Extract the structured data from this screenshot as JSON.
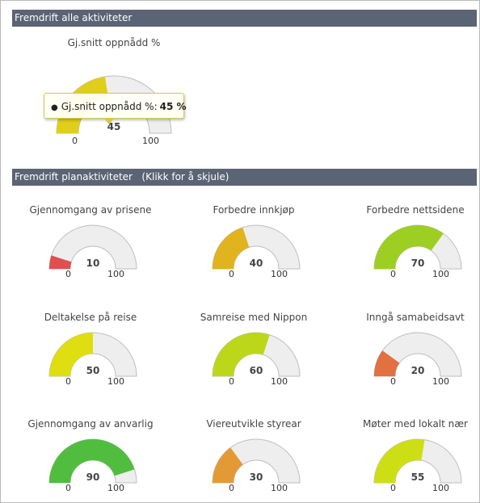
{
  "section_all": {
    "header": "Fremdrift alle aktiviteter",
    "gauge": {
      "title": "Gj.snitt oppnådd %",
      "value": 45,
      "min": "0",
      "max": "100",
      "value_label": "45",
      "color": "#e1ce1b"
    },
    "tooltip": {
      "label": "Gj.snitt oppnådd %:",
      "value": "45 %"
    }
  },
  "section_plan": {
    "header": "Fremdrift planaktiviteter   (Klikk for å skjule)",
    "gauges": [
      {
        "title": "Gjennomgang av prisene",
        "value": 10,
        "value_label": "10",
        "min": "0",
        "max": "100",
        "color": "#e04f4f"
      },
      {
        "title": "Forbedre innkjøp",
        "value": 40,
        "value_label": "40",
        "min": "0",
        "max": "100",
        "color": "#e1b31f"
      },
      {
        "title": "Forbedre nettsidene",
        "value": 70,
        "value_label": "70",
        "min": "0",
        "max": "100",
        "color": "#9ccf22"
      },
      {
        "title": "Deltakelse på reise",
        "value": 50,
        "value_label": "50",
        "min": "0",
        "max": "100",
        "color": "#dede10"
      },
      {
        "title": "Samreise med Nippon",
        "value": 60,
        "value_label": "60",
        "min": "0",
        "max": "100",
        "color": "#bcd71a"
      },
      {
        "title": "Inngå samabeidsavt",
        "value": 20,
        "value_label": "20",
        "min": "0",
        "max": "100",
        "color": "#e27040"
      },
      {
        "title": "Gjennomgang av anvarlig",
        "value": 90,
        "value_label": "90",
        "min": "0",
        "max": "100",
        "color": "#51bd3f"
      },
      {
        "title": "Viereutvikle styrear",
        "value": 30,
        "value_label": "30",
        "min": "0",
        "max": "100",
        "color": "#e39a35"
      },
      {
        "title": "Møter med lokalt nær",
        "value": 55,
        "value_label": "55",
        "min": "0",
        "max": "100",
        "color": "#cede15"
      }
    ]
  },
  "colors": {
    "header_bg": "#5b6474",
    "gauge_bg": "#eeeeee",
    "gauge_border": "#bdbdbd"
  }
}
